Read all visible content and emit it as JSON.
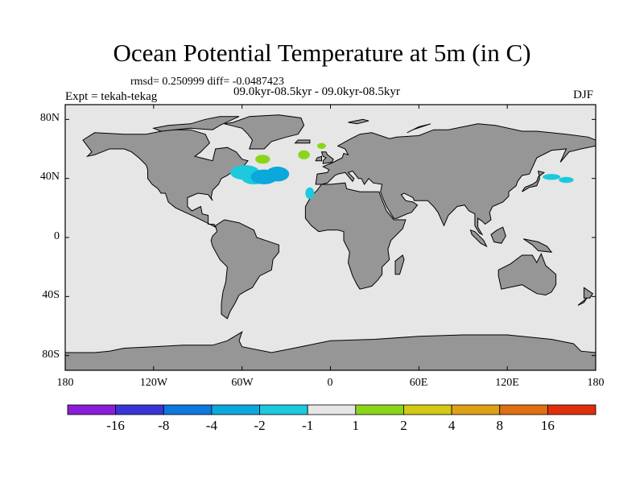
{
  "title": "Ocean Potential Temperature at 5m (in C)",
  "stats": "rmsd= 0.250999  diff= -0.0487423",
  "subtitle": "09.0kyr-08.5kyr - 09.0kyr-08.5kyr",
  "expt_label": "Expt = tekah-tekag",
  "season": "DJF",
  "map": {
    "ocean_color": "#e6e6e6",
    "land_color": "#969696",
    "lat_ticks": [
      "80N",
      "40N",
      "0",
      "40S",
      "80S"
    ],
    "lon_ticks": [
      "180",
      "120W",
      "60W",
      "0",
      "60E",
      "120E",
      "180"
    ],
    "anomalies": [
      {
        "region": "North Atlantic (west)",
        "class": "-2 to -1",
        "color": "#1cc9dd"
      },
      {
        "region": "North Atlantic (mid)",
        "class": "-4 to -2",
        "color": "#0ba8dc"
      },
      {
        "region": "Labrador Sea / south of Greenland",
        "class": "1 to 2",
        "color": "#8ad51a"
      },
      {
        "region": "Norwegian Sea",
        "class": "1 to 2",
        "color": "#8ad51a"
      },
      {
        "region": "Off Iberia",
        "class": "-2 to -1",
        "color": "#1cc9dd"
      },
      {
        "region": "NW Pacific off Japan",
        "class": "-2 to -1",
        "color": "#1cc9dd"
      }
    ]
  },
  "colorbar": {
    "colors": [
      "#8a1ed8",
      "#3a34d6",
      "#0d78dd",
      "#0ba8dc",
      "#1cc9dd",
      "#e6e6e6",
      "#8ad51a",
      "#d1c914",
      "#dda117",
      "#de6f12",
      "#de2e0e"
    ],
    "labels": [
      "-16",
      "-8",
      "-4",
      "-2",
      "-1",
      "1",
      "2",
      "4",
      "8",
      "16"
    ]
  }
}
